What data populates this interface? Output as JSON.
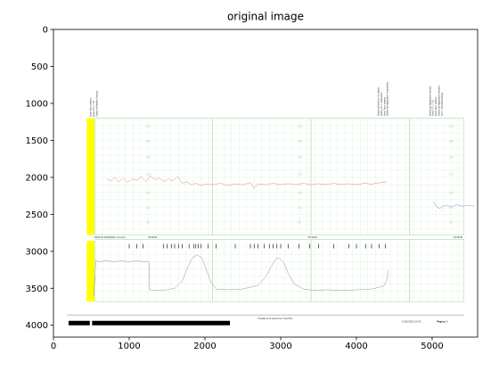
{
  "chart_data": {
    "type": "line",
    "title": "original image",
    "xlim": [
      0,
      5600
    ],
    "ylim": [
      0,
      4160
    ],
    "y_inverted": true,
    "x_ticks": [
      0,
      1000,
      2000,
      3000,
      4000,
      5000
    ],
    "y_ticks": [
      0,
      500,
      1000,
      1500,
      2000,
      2500,
      3000,
      3500,
      4000
    ],
    "strip_labels": [
      "220",
      "180",
      "150",
      "120",
      "100",
      "80",
      "60"
    ],
    "time_labels": [
      {
        "x": 540,
        "text": "03:04:33  11/30/2023  1 cm/min"
      },
      {
        "x": 1250,
        "text": "03:09:00"
      },
      {
        "x": 3360,
        "text": "03:19:00"
      },
      {
        "x": 5280,
        "text": "03:29:00"
      }
    ],
    "fhr_trace": [
      [
        700,
        2020
      ],
      [
        760,
        2050
      ],
      [
        800,
        2000
      ],
      [
        860,
        2060
      ],
      [
        920,
        2010
      ],
      [
        980,
        2070
      ],
      [
        1040,
        2020
      ],
      [
        1100,
        2040
      ],
      [
        1160,
        1990
      ],
      [
        1220,
        2060
      ],
      [
        1280,
        1980
      ],
      [
        1340,
        2030
      ],
      [
        1400,
        2010
      ],
      [
        1460,
        2060
      ],
      [
        1520,
        2020
      ],
      [
        1580,
        2050
      ],
      [
        1640,
        1990
      ],
      [
        1700,
        2080
      ],
      [
        1760,
        2060
      ],
      [
        1820,
        2100
      ],
      [
        1880,
        2080
      ],
      [
        1940,
        2110
      ],
      [
        2000,
        2090
      ],
      [
        2100,
        2100
      ],
      [
        2200,
        2080
      ],
      [
        2300,
        2110
      ],
      [
        2400,
        2090
      ],
      [
        2500,
        2100
      ],
      [
        2600,
        2070
      ],
      [
        2650,
        2150
      ],
      [
        2700,
        2090
      ],
      [
        2800,
        2100
      ],
      [
        2900,
        2080
      ],
      [
        3000,
        2100
      ],
      [
        3100,
        2085
      ],
      [
        3200,
        2100
      ],
      [
        3300,
        2080
      ],
      [
        3400,
        2100
      ],
      [
        3500,
        2085
      ],
      [
        3600,
        2100
      ],
      [
        3700,
        2080
      ],
      [
        3800,
        2100
      ],
      [
        3900,
        2085
      ],
      [
        4000,
        2100
      ],
      [
        4100,
        2080
      ],
      [
        4200,
        2090
      ],
      [
        4300,
        2075
      ],
      [
        4400,
        2060
      ]
    ],
    "secondary_trace": [
      [
        5020,
        2330
      ],
      [
        5060,
        2400
      ],
      [
        5100,
        2420
      ],
      [
        5140,
        2390
      ],
      [
        5200,
        2380
      ],
      [
        5260,
        2400
      ],
      [
        5320,
        2370
      ],
      [
        5400,
        2390
      ],
      [
        5480,
        2380
      ],
      [
        5560,
        2390
      ]
    ],
    "uterine_trace": [
      [
        530,
        3600
      ],
      [
        560,
        3120
      ],
      [
        600,
        3140
      ],
      [
        700,
        3130
      ],
      [
        800,
        3140
      ],
      [
        900,
        3130
      ],
      [
        1000,
        3140
      ],
      [
        1100,
        3130
      ],
      [
        1200,
        3140
      ],
      [
        1260,
        3140
      ],
      [
        1270,
        3520
      ],
      [
        1400,
        3530
      ],
      [
        1500,
        3520
      ],
      [
        1600,
        3500
      ],
      [
        1700,
        3400
      ],
      [
        1780,
        3200
      ],
      [
        1840,
        3080
      ],
      [
        1900,
        3050
      ],
      [
        1960,
        3090
      ],
      [
        2020,
        3250
      ],
      [
        2080,
        3420
      ],
      [
        2150,
        3510
      ],
      [
        2300,
        3520
      ],
      [
        2500,
        3510
      ],
      [
        2700,
        3460
      ],
      [
        2800,
        3350
      ],
      [
        2880,
        3200
      ],
      [
        2940,
        3100
      ],
      [
        2980,
        3090
      ],
      [
        3040,
        3150
      ],
      [
        3100,
        3300
      ],
      [
        3180,
        3440
      ],
      [
        3300,
        3510
      ],
      [
        3450,
        3530
      ],
      [
        3600,
        3520
      ],
      [
        3800,
        3530
      ],
      [
        4000,
        3520
      ],
      [
        4200,
        3510
      ],
      [
        4360,
        3470
      ],
      [
        4400,
        3400
      ],
      [
        4420,
        3260
      ]
    ],
    "header_left_notes": [
      "Modo Toco: externo",
      "Modo FCF 1: US",
      "Estado del tiempo: Actuado"
    ],
    "header_right_notes_1": [
      "Estado del modulo: En espera",
      "Modo FCF 1: ultrasonido",
      "Modo Toco: externo",
      "Estado del registrador: Desactivado"
    ],
    "header_right_notes_2": [
      "Estado del registrador: Actuado",
      "Modo FCF 1: US",
      "Modo Toco: externo",
      "Estado del registrador: Activado",
      "FCF 1: PERDIDA SENAL"
    ],
    "footer_center": "Hospital de la Santa Creu i Sant Pau",
    "footer_right": "11/30/2023 13:41",
    "footer_page": "Pàgina: 1"
  }
}
